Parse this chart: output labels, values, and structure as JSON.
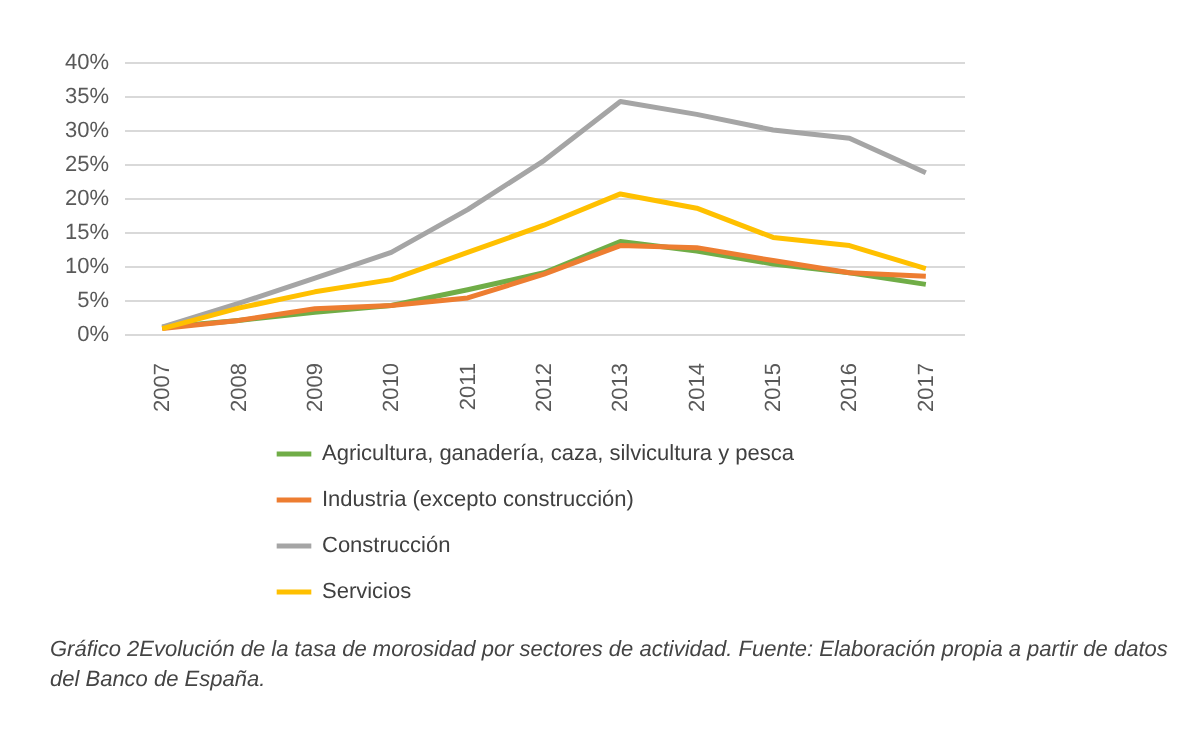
{
  "chart_data": {
    "type": "line",
    "categories": [
      "2007",
      "2008",
      "2009",
      "2010",
      "2011",
      "2012",
      "2013",
      "2014",
      "2015",
      "2016",
      "2017"
    ],
    "series": [
      {
        "name": "Agricultura, ganadería, caza, silvicultura y pesca",
        "color": "#70ad47",
        "values": [
          1,
          2,
          3.2,
          4.2,
          6.5,
          9,
          13.6,
          12.2,
          10.3,
          9,
          7.3
        ]
      },
      {
        "name": "Industria (excepto construcción)",
        "color": "#ed7d31",
        "values": [
          0.8,
          2,
          3.7,
          4.2,
          5.3,
          8.8,
          13,
          12.7,
          10.8,
          9,
          8.5
        ]
      },
      {
        "name": "Construcción",
        "color": "#a5a5a5",
        "values": [
          1,
          4.5,
          8.2,
          12,
          18.3,
          25.5,
          34.2,
          32.3,
          30,
          28.8,
          23.7
        ]
      },
      {
        "name": "Servicios",
        "color": "#ffc000",
        "values": [
          0.8,
          3.8,
          6.2,
          8,
          12,
          16,
          20.6,
          18.5,
          14.2,
          13,
          9.6
        ]
      }
    ],
    "ylim": [
      0,
      40
    ],
    "yticks": [
      {
        "value": 0,
        "label": "0%"
      },
      {
        "value": 5,
        "label": "5%"
      },
      {
        "value": 10,
        "label": "10%"
      },
      {
        "value": 15,
        "label": "15%"
      },
      {
        "value": 20,
        "label": "20%"
      },
      {
        "value": 25,
        "label": "25%"
      },
      {
        "value": 30,
        "label": "30%"
      },
      {
        "value": 35,
        "label": "35%"
      },
      {
        "value": 40,
        "label": "40%"
      }
    ],
    "grid": "y",
    "legend": "bottom",
    "annotations": [
      "Gráfico 2Evolución de la tasa de morosidad por sectores de actividad. Fuente: Elaboración propia a partir de datos del Banco de España."
    ]
  }
}
